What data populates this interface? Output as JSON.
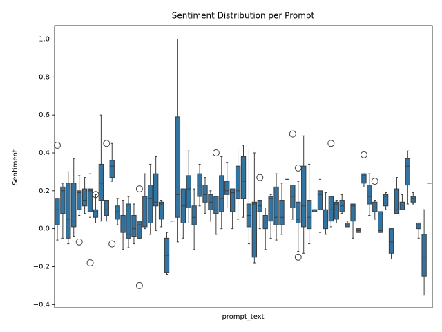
{
  "chart_data": {
    "type": "box",
    "title": "Sentiment Distribution per Prompt",
    "xlabel": "prompt_text",
    "ylabel": "Sentiment",
    "color": "#3274a1",
    "edgecolor": "#3d3d3d",
    "ylim": [
      -0.417,
      1.071
    ],
    "yticks": [
      {
        "value": -0.4,
        "label": "−0.4"
      },
      {
        "value": -0.2,
        "label": "−0.2"
      },
      {
        "value": 0.0,
        "label": "0.0"
      },
      {
        "value": 0.2,
        "label": "0.2"
      },
      {
        "value": 0.4,
        "label": "0.4"
      },
      {
        "value": 0.6,
        "label": "0.6"
      },
      {
        "value": 0.8,
        "label": "0.8"
      },
      {
        "value": 1.0,
        "label": "1.0"
      }
    ],
    "whislo": [
      -0.06,
      -0.05,
      -0.08,
      -0.04,
      0.07,
      0.08,
      0.06,
      0.03,
      0.04,
      0.04,
      0.25,
      0.02,
      -0.11,
      -0.1,
      -0.08,
      -0.05,
      0.0,
      -0.03,
      -0.01,
      0.01,
      -0.24,
      0.04,
      -0.07,
      -0.05,
      0.03,
      -0.11,
      0.12,
      0.08,
      0.04,
      -0.03,
      0.0,
      0.11,
      0.0,
      0.05,
      0.06,
      -0.08,
      -0.18,
      0.0,
      -0.11,
      -0.05,
      -0.06,
      -0.03,
      0.26,
      0.05,
      -0.12,
      -0.13,
      -0.08,
      0.09,
      -0.02,
      -0.03,
      0.01,
      0.03,
      0.08,
      0.01,
      -0.05,
      -0.02,
      0.22,
      0.07,
      0.05,
      -0.02,
      0.1,
      -0.16,
      0.08,
      0.1,
      0.13,
      0.13,
      -0.05,
      -0.35,
      0.24
    ],
    "q1": [
      0.02,
      0.08,
      -0.05,
      0.01,
      0.1,
      0.12,
      0.09,
      0.06,
      0.15,
      0.07,
      0.27,
      0.05,
      -0.02,
      -0.05,
      -0.04,
      -0.05,
      0.01,
      0.03,
      0.12,
      0.05,
      -0.23,
      0.04,
      0.06,
      0.03,
      0.11,
      0.02,
      0.17,
      0.14,
      0.1,
      0.08,
      0.09,
      0.18,
      0.09,
      0.16,
      0.16,
      0.01,
      -0.15,
      0.09,
      0.0,
      0.04,
      0.02,
      0.02,
      0.26,
      0.11,
      0.03,
      0.01,
      0.0,
      0.09,
      0.1,
      0.0,
      0.04,
      0.05,
      0.09,
      0.01,
      0.04,
      -0.02,
      0.24,
      0.13,
      0.09,
      -0.02,
      0.12,
      -0.13,
      0.08,
      0.1,
      0.23,
      0.14,
      0.0,
      -0.25,
      0.24
    ],
    "median": [
      0.1,
      0.2,
      0.05,
      0.04,
      0.19,
      0.15,
      0.2,
      0.09,
      0.24,
      0.1,
      0.33,
      0.09,
      0.03,
      -0.03,
      0.0,
      0.02,
      0.03,
      0.16,
      0.14,
      0.13,
      -0.14,
      0.04,
      0.18,
      0.12,
      0.21,
      0.06,
      0.23,
      0.18,
      0.14,
      0.1,
      0.16,
      0.2,
      0.19,
      0.2,
      0.25,
      0.07,
      0.13,
      0.12,
      0.03,
      0.16,
      0.06,
      0.06,
      0.26,
      0.17,
      0.05,
      0.12,
      0.06,
      0.1,
      0.18,
      0.04,
      0.1,
      0.13,
      0.12,
      0.02,
      0.12,
      -0.01,
      0.28,
      0.17,
      0.11,
      -0.01,
      0.17,
      -0.07,
      0.1,
      0.1,
      0.33,
      0.16,
      0.02,
      -0.15,
      0.24
    ],
    "q3": [
      0.16,
      0.22,
      0.24,
      0.24,
      0.2,
      0.21,
      0.21,
      0.1,
      0.34,
      0.15,
      0.36,
      0.12,
      0.07,
      0.13,
      0.07,
      0.04,
      0.17,
      0.23,
      0.29,
      0.14,
      -0.05,
      0.04,
      0.59,
      0.21,
      0.28,
      0.12,
      0.29,
      0.23,
      0.18,
      0.17,
      0.28,
      0.25,
      0.21,
      0.33,
      0.38,
      0.13,
      0.14,
      0.15,
      0.07,
      0.17,
      0.22,
      0.15,
      0.26,
      0.23,
      0.14,
      0.33,
      0.15,
      0.1,
      0.2,
      0.1,
      0.17,
      0.14,
      0.15,
      0.03,
      0.13,
      0.0,
      0.29,
      0.23,
      0.14,
      0.09,
      0.18,
      0.0,
      0.21,
      0.14,
      0.37,
      0.17,
      0.03,
      -0.03,
      0.24
    ],
    "whishi": [
      0.16,
      0.24,
      0.3,
      0.37,
      0.28,
      0.27,
      0.29,
      0.18,
      0.6,
      0.15,
      0.45,
      0.16,
      0.15,
      0.17,
      0.13,
      0.04,
      0.29,
      0.34,
      0.38,
      0.15,
      -0.02,
      0.04,
      1.0,
      0.21,
      0.41,
      0.21,
      0.34,
      0.27,
      0.2,
      0.17,
      0.38,
      0.35,
      0.21,
      0.42,
      0.44,
      0.42,
      0.4,
      0.15,
      0.11,
      0.18,
      0.29,
      0.24,
      0.26,
      0.23,
      0.25,
      0.49,
      0.34,
      0.1,
      0.26,
      0.19,
      0.17,
      0.15,
      0.18,
      0.04,
      0.13,
      0.0,
      0.29,
      0.29,
      0.15,
      0.09,
      0.19,
      0.0,
      0.27,
      0.18,
      0.41,
      0.19,
      0.03,
      0.1,
      0.24
    ],
    "fliers": [
      [
        0.44
      ],
      [],
      [],
      [],
      [
        -0.07
      ],
      [],
      [
        -0.18
      ],
      [
        0.18
      ],
      [],
      [
        0.45
      ],
      [
        -0.08
      ],
      [],
      [],
      [],
      [],
      [
        0.21,
        -0.3
      ],
      [],
      [],
      [],
      [],
      [],
      [],
      [],
      [],
      [],
      [],
      [],
      [],
      [],
      [
        0.4
      ],
      [],
      [],
      [],
      [],
      [],
      [],
      [],
      [
        0.27
      ],
      [],
      [],
      [],
      [],
      [],
      [
        0.5
      ],
      [
        0.32,
        -0.15
      ],
      [],
      [],
      [],
      [],
      [],
      [
        0.45
      ],
      [],
      [],
      [],
      [],
      [],
      [
        0.39
      ],
      [],
      [
        0.25
      ],
      [],
      [],
      [],
      [],
      [],
      [],
      [],
      [],
      [],
      []
    ]
  }
}
